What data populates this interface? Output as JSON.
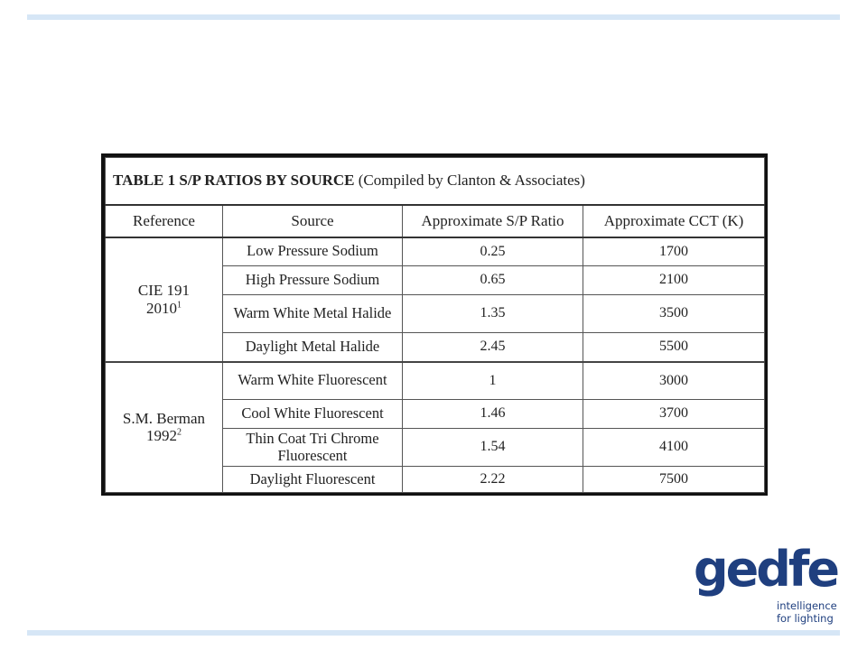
{
  "table": {
    "caption_bold": "TABLE 1 S/P RATIOS BY SOURCE",
    "caption_rest": " (Compiled by Clanton & Associates)",
    "headers": [
      "Reference",
      "Source",
      "Approximate S/P Ratio",
      "Approximate CCT (K)"
    ],
    "groups": [
      {
        "reference": "CIE 191",
        "reference_year": "2010",
        "reference_note": "1",
        "rows": [
          {
            "source": "Low Pressure Sodium",
            "sp_ratio": "0.25",
            "cct": "1700"
          },
          {
            "source": "High Pressure Sodium",
            "sp_ratio": "0.65",
            "cct": "2100"
          },
          {
            "source": "Warm White Metal Halide",
            "sp_ratio": "1.35",
            "cct": "3500"
          },
          {
            "source": "Daylight Metal Halide",
            "sp_ratio": "2.45",
            "cct": "5500"
          }
        ]
      },
      {
        "reference": "S.M. Berman",
        "reference_year": "1992",
        "reference_note": "2",
        "rows": [
          {
            "source": "Warm White Fluorescent",
            "sp_ratio": "1",
            "cct": "3000"
          },
          {
            "source": "Cool White Fluorescent",
            "sp_ratio": "1.46",
            "cct": "3700"
          },
          {
            "source": "Thin Coat Tri Chrome Fluorescent",
            "sp_ratio": "1.54",
            "cct": "4100"
          },
          {
            "source": "Daylight Fluorescent",
            "sp_ratio": "2.22",
            "cct": "7500"
          }
        ]
      }
    ]
  },
  "logo": {
    "wordmark": "gedfe",
    "tagline_line1": "intelligence",
    "tagline_line2": "for lighting",
    "color": "#1f3f7f"
  },
  "colors": {
    "rule": "#d6e6f6"
  }
}
